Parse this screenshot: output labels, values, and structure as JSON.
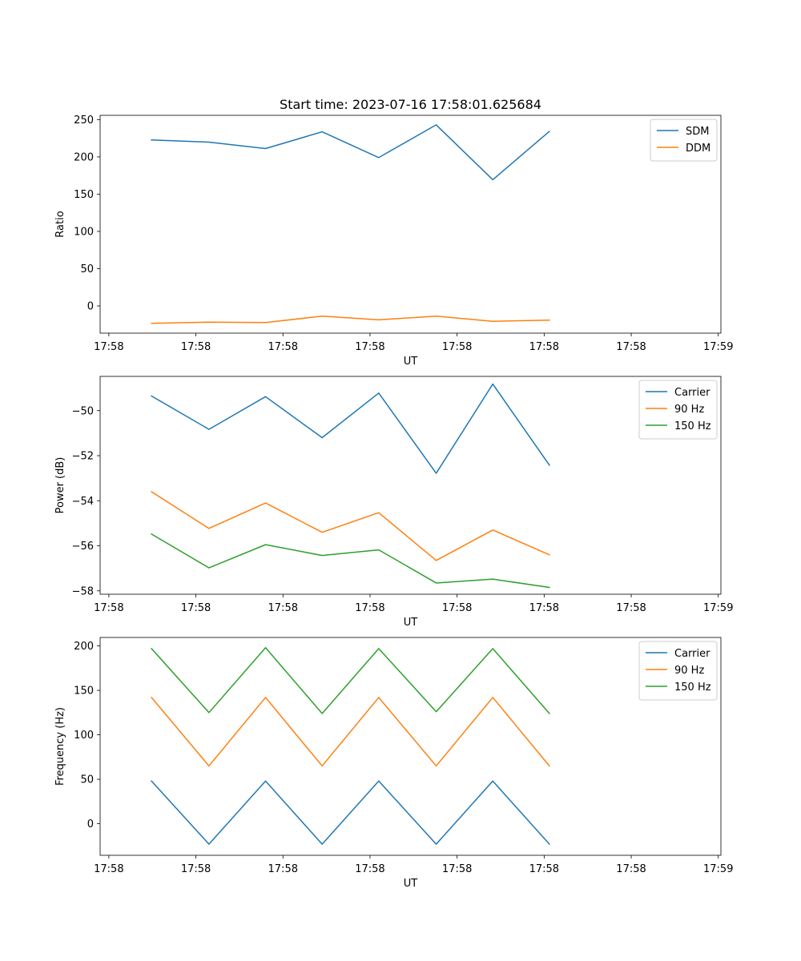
{
  "chart_data": [
    {
      "type": "line",
      "title": "Start time: 2023-07-16 17:58:01.625684",
      "xlabel": "UT",
      "ylabel": "Ratio",
      "x_tick_labels": [
        "17:58",
        "17:58",
        "17:58",
        "17:58",
        "17:58",
        "17:58",
        "17:58",
        "17:59"
      ],
      "x_ticks": [
        0,
        1,
        2,
        3,
        4,
        5,
        6,
        7
      ],
      "xlim": [
        -0.1,
        7.03
      ],
      "x": [
        0.49,
        1.15,
        1.8,
        2.45,
        3.1,
        3.76,
        4.41,
        5.06
      ],
      "ylim": [
        -36.5,
        255.8
      ],
      "y_ticks": [
        0,
        50,
        100,
        150,
        200,
        250
      ],
      "y_tick_labels": [
        "0",
        "50",
        "100",
        "150",
        "200",
        "250"
      ],
      "legend_position": "top-right",
      "series": [
        {
          "name": "SDM",
          "color": "#1f77b4",
          "values": [
            222.7,
            219.8,
            211.2,
            233.7,
            199.1,
            243.0,
            169.4,
            234.2
          ]
        },
        {
          "name": "DDM",
          "color": "#ff7f0e",
          "values": [
            -23.3,
            -21.7,
            -22.3,
            -13.7,
            -18.6,
            -13.7,
            -20.6,
            -19.0
          ]
        }
      ]
    },
    {
      "type": "line",
      "xlabel": "UT",
      "ylabel": "Power (dB)",
      "x_tick_labels": [
        "17:58",
        "17:58",
        "17:58",
        "17:58",
        "17:58",
        "17:58",
        "17:58",
        "17:59"
      ],
      "x_ticks": [
        0,
        1,
        2,
        3,
        4,
        5,
        6,
        7
      ],
      "xlim": [
        -0.1,
        7.03
      ],
      "x": [
        0.49,
        1.15,
        1.8,
        2.45,
        3.1,
        3.76,
        4.41,
        5.06
      ],
      "ylim": [
        -58.15,
        -48.48
      ],
      "y_ticks": [
        -58,
        -56,
        -54,
        -52,
        -50
      ],
      "y_tick_labels": [
        "−58",
        "−56",
        "−54",
        "−52",
        "−50"
      ],
      "legend_position": "top-right",
      "series": [
        {
          "name": "Carrier",
          "color": "#1f77b4",
          "values": [
            -49.35,
            -50.83,
            -49.38,
            -51.2,
            -49.22,
            -52.78,
            -48.82,
            -52.42
          ]
        },
        {
          "name": "90 Hz",
          "color": "#ff7f0e",
          "values": [
            -53.6,
            -55.23,
            -54.1,
            -55.4,
            -54.53,
            -56.65,
            -55.3,
            -56.4
          ]
        },
        {
          "name": "150 Hz",
          "color": "#2ca02c",
          "values": [
            -55.48,
            -56.98,
            -55.95,
            -56.43,
            -56.18,
            -57.65,
            -57.48,
            -57.85
          ]
        }
      ]
    },
    {
      "type": "line",
      "xlabel": "UT",
      "ylabel": "Frequency (Hz)",
      "x_tick_labels": [
        "17:58",
        "17:58",
        "17:58",
        "17:58",
        "17:58",
        "17:58",
        "17:58",
        "17:59"
      ],
      "x_ticks": [
        0,
        1,
        2,
        3,
        4,
        5,
        6,
        7
      ],
      "xlim": [
        -0.1,
        7.03
      ],
      "x": [
        0.49,
        1.15,
        1.8,
        2.45,
        3.1,
        3.76,
        4.41,
        5.06
      ],
      "ylim": [
        -35.5,
        209.5
      ],
      "y_ticks": [
        0,
        50,
        100,
        150,
        200
      ],
      "y_tick_labels": [
        "0",
        "50",
        "100",
        "150",
        "200"
      ],
      "legend_position": "top-right",
      "series": [
        {
          "name": "Carrier",
          "color": "#1f77b4",
          "values": [
            48,
            -23,
            48,
            -23,
            48,
            -23,
            48,
            -23
          ]
        },
        {
          "name": "90 Hz",
          "color": "#ff7f0e",
          "values": [
            142,
            65,
            142,
            65,
            142,
            65,
            142,
            65
          ]
        },
        {
          "name": "150 Hz",
          "color": "#2ca02c",
          "values": [
            197,
            125,
            198,
            124,
            197,
            126,
            197,
            124
          ]
        }
      ]
    }
  ]
}
